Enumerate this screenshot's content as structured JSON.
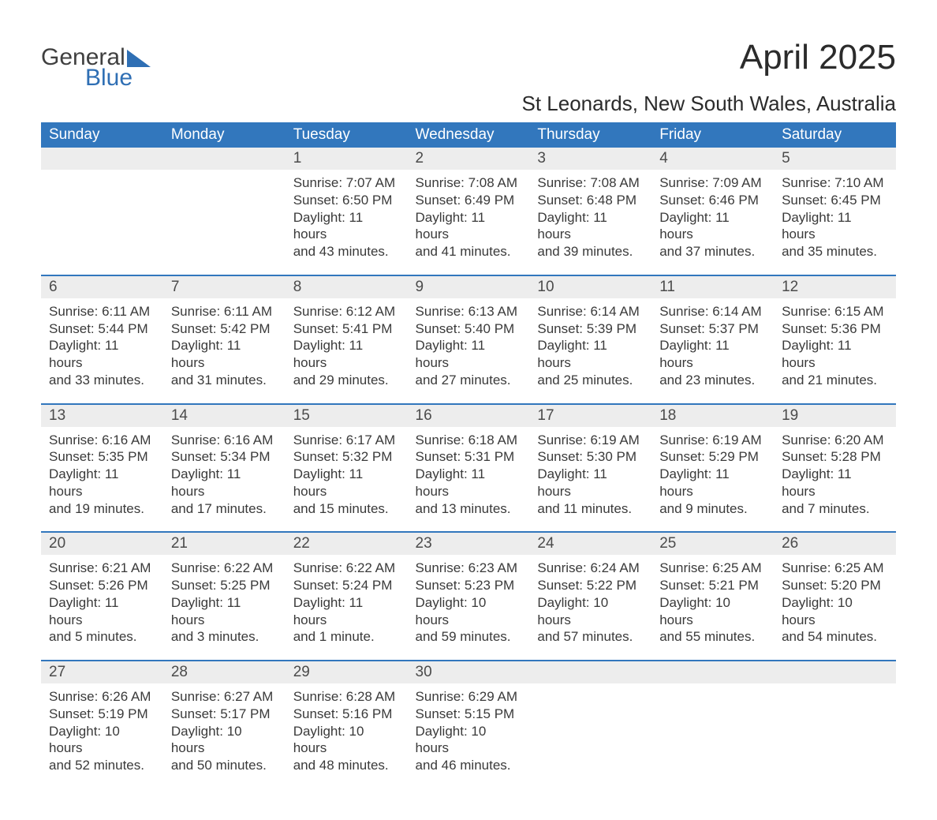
{
  "logo": {
    "word1": "General",
    "word2": "Blue"
  },
  "title": "April 2025",
  "location": "St Leonards, New South Wales, Australia",
  "day_headers": [
    "Sunday",
    "Monday",
    "Tuesday",
    "Wednesday",
    "Thursday",
    "Friday",
    "Saturday"
  ],
  "colors": {
    "header_bg": "#3277bd",
    "header_fg": "#ffffff",
    "daynum_bg": "#ededed",
    "row_border": "#3277bd",
    "text": "#3a3a3a",
    "title": "#2b2b2b",
    "logo_general": "#404040",
    "logo_blue": "#2f6fb4",
    "background": "#ffffff"
  },
  "typography": {
    "title_fontsize": 44,
    "location_fontsize": 26,
    "header_fontsize": 19,
    "daynum_fontsize": 19,
    "body_fontsize": 17
  },
  "weeks": [
    [
      null,
      null,
      {
        "n": "1",
        "sr": "Sunrise: 7:07 AM",
        "ss": "Sunset: 6:50 PM",
        "d1": "Daylight: 11 hours",
        "d2": "and 43 minutes."
      },
      {
        "n": "2",
        "sr": "Sunrise: 7:08 AM",
        "ss": "Sunset: 6:49 PM",
        "d1": "Daylight: 11 hours",
        "d2": "and 41 minutes."
      },
      {
        "n": "3",
        "sr": "Sunrise: 7:08 AM",
        "ss": "Sunset: 6:48 PM",
        "d1": "Daylight: 11 hours",
        "d2": "and 39 minutes."
      },
      {
        "n": "4",
        "sr": "Sunrise: 7:09 AM",
        "ss": "Sunset: 6:46 PM",
        "d1": "Daylight: 11 hours",
        "d2": "and 37 minutes."
      },
      {
        "n": "5",
        "sr": "Sunrise: 7:10 AM",
        "ss": "Sunset: 6:45 PM",
        "d1": "Daylight: 11 hours",
        "d2": "and 35 minutes."
      }
    ],
    [
      {
        "n": "6",
        "sr": "Sunrise: 6:11 AM",
        "ss": "Sunset: 5:44 PM",
        "d1": "Daylight: 11 hours",
        "d2": "and 33 minutes."
      },
      {
        "n": "7",
        "sr": "Sunrise: 6:11 AM",
        "ss": "Sunset: 5:42 PM",
        "d1": "Daylight: 11 hours",
        "d2": "and 31 minutes."
      },
      {
        "n": "8",
        "sr": "Sunrise: 6:12 AM",
        "ss": "Sunset: 5:41 PM",
        "d1": "Daylight: 11 hours",
        "d2": "and 29 minutes."
      },
      {
        "n": "9",
        "sr": "Sunrise: 6:13 AM",
        "ss": "Sunset: 5:40 PM",
        "d1": "Daylight: 11 hours",
        "d2": "and 27 minutes."
      },
      {
        "n": "10",
        "sr": "Sunrise: 6:14 AM",
        "ss": "Sunset: 5:39 PM",
        "d1": "Daylight: 11 hours",
        "d2": "and 25 minutes."
      },
      {
        "n": "11",
        "sr": "Sunrise: 6:14 AM",
        "ss": "Sunset: 5:37 PM",
        "d1": "Daylight: 11 hours",
        "d2": "and 23 minutes."
      },
      {
        "n": "12",
        "sr": "Sunrise: 6:15 AM",
        "ss": "Sunset: 5:36 PM",
        "d1": "Daylight: 11 hours",
        "d2": "and 21 minutes."
      }
    ],
    [
      {
        "n": "13",
        "sr": "Sunrise: 6:16 AM",
        "ss": "Sunset: 5:35 PM",
        "d1": "Daylight: 11 hours",
        "d2": "and 19 minutes."
      },
      {
        "n": "14",
        "sr": "Sunrise: 6:16 AM",
        "ss": "Sunset: 5:34 PM",
        "d1": "Daylight: 11 hours",
        "d2": "and 17 minutes."
      },
      {
        "n": "15",
        "sr": "Sunrise: 6:17 AM",
        "ss": "Sunset: 5:32 PM",
        "d1": "Daylight: 11 hours",
        "d2": "and 15 minutes."
      },
      {
        "n": "16",
        "sr": "Sunrise: 6:18 AM",
        "ss": "Sunset: 5:31 PM",
        "d1": "Daylight: 11 hours",
        "d2": "and 13 minutes."
      },
      {
        "n": "17",
        "sr": "Sunrise: 6:19 AM",
        "ss": "Sunset: 5:30 PM",
        "d1": "Daylight: 11 hours",
        "d2": "and 11 minutes."
      },
      {
        "n": "18",
        "sr": "Sunrise: 6:19 AM",
        "ss": "Sunset: 5:29 PM",
        "d1": "Daylight: 11 hours",
        "d2": "and 9 minutes."
      },
      {
        "n": "19",
        "sr": "Sunrise: 6:20 AM",
        "ss": "Sunset: 5:28 PM",
        "d1": "Daylight: 11 hours",
        "d2": "and 7 minutes."
      }
    ],
    [
      {
        "n": "20",
        "sr": "Sunrise: 6:21 AM",
        "ss": "Sunset: 5:26 PM",
        "d1": "Daylight: 11 hours",
        "d2": "and 5 minutes."
      },
      {
        "n": "21",
        "sr": "Sunrise: 6:22 AM",
        "ss": "Sunset: 5:25 PM",
        "d1": "Daylight: 11 hours",
        "d2": "and 3 minutes."
      },
      {
        "n": "22",
        "sr": "Sunrise: 6:22 AM",
        "ss": "Sunset: 5:24 PM",
        "d1": "Daylight: 11 hours",
        "d2": "and 1 minute."
      },
      {
        "n": "23",
        "sr": "Sunrise: 6:23 AM",
        "ss": "Sunset: 5:23 PM",
        "d1": "Daylight: 10 hours",
        "d2": "and 59 minutes."
      },
      {
        "n": "24",
        "sr": "Sunrise: 6:24 AM",
        "ss": "Sunset: 5:22 PM",
        "d1": "Daylight: 10 hours",
        "d2": "and 57 minutes."
      },
      {
        "n": "25",
        "sr": "Sunrise: 6:25 AM",
        "ss": "Sunset: 5:21 PM",
        "d1": "Daylight: 10 hours",
        "d2": "and 55 minutes."
      },
      {
        "n": "26",
        "sr": "Sunrise: 6:25 AM",
        "ss": "Sunset: 5:20 PM",
        "d1": "Daylight: 10 hours",
        "d2": "and 54 minutes."
      }
    ],
    [
      {
        "n": "27",
        "sr": "Sunrise: 6:26 AM",
        "ss": "Sunset: 5:19 PM",
        "d1": "Daylight: 10 hours",
        "d2": "and 52 minutes."
      },
      {
        "n": "28",
        "sr": "Sunrise: 6:27 AM",
        "ss": "Sunset: 5:17 PM",
        "d1": "Daylight: 10 hours",
        "d2": "and 50 minutes."
      },
      {
        "n": "29",
        "sr": "Sunrise: 6:28 AM",
        "ss": "Sunset: 5:16 PM",
        "d1": "Daylight: 10 hours",
        "d2": "and 48 minutes."
      },
      {
        "n": "30",
        "sr": "Sunrise: 6:29 AM",
        "ss": "Sunset: 5:15 PM",
        "d1": "Daylight: 10 hours",
        "d2": "and 46 minutes."
      },
      null,
      null,
      null
    ]
  ]
}
